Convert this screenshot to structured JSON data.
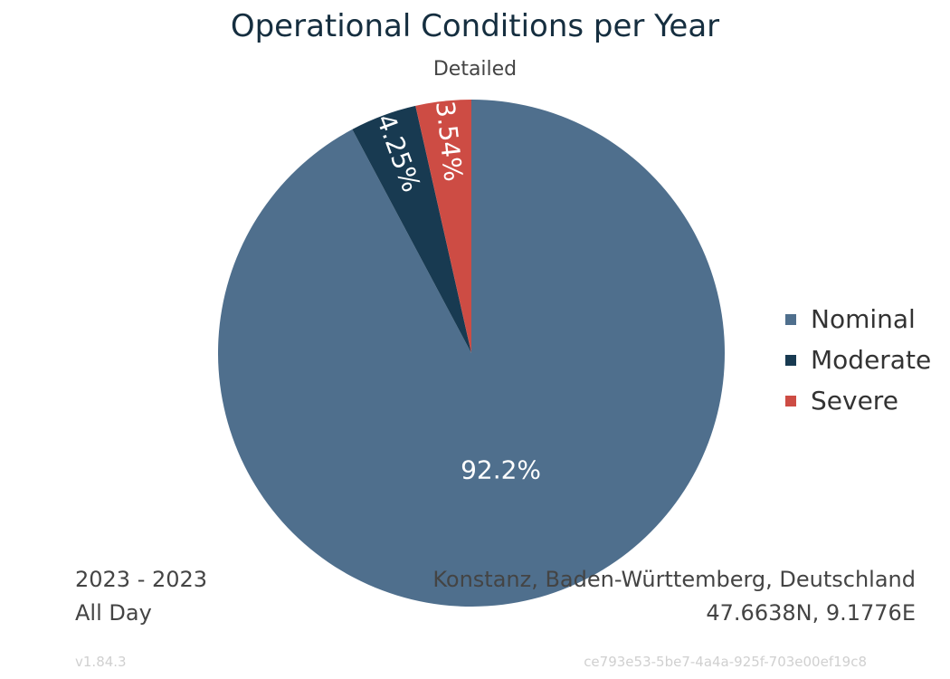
{
  "chart_data": {
    "type": "pie",
    "title": "Operational Conditions per Year",
    "subtitle": "Detailed",
    "slices": [
      {
        "label": "Nominal",
        "value": 92.2,
        "value_label": "92.2%",
        "color": "#4f6f8d"
      },
      {
        "label": "Moderate",
        "value": 4.25,
        "value_label": "4.25%",
        "color": "#183a51"
      },
      {
        "label": "Severe",
        "value": 3.54,
        "value_label": "3.54%",
        "color": "#cd4c44"
      }
    ],
    "legend_position": "right"
  },
  "footer": {
    "date_range": "2023 - 2023",
    "time_of_day": "All Day",
    "location": "Konstanz, Baden-Württemberg, Deutschland",
    "coordinates": "47.6638N, 9.1776E",
    "version": "v1.84.3",
    "id": "ce793e53-5be7-4a4a-925f-703e00ef19c8"
  }
}
